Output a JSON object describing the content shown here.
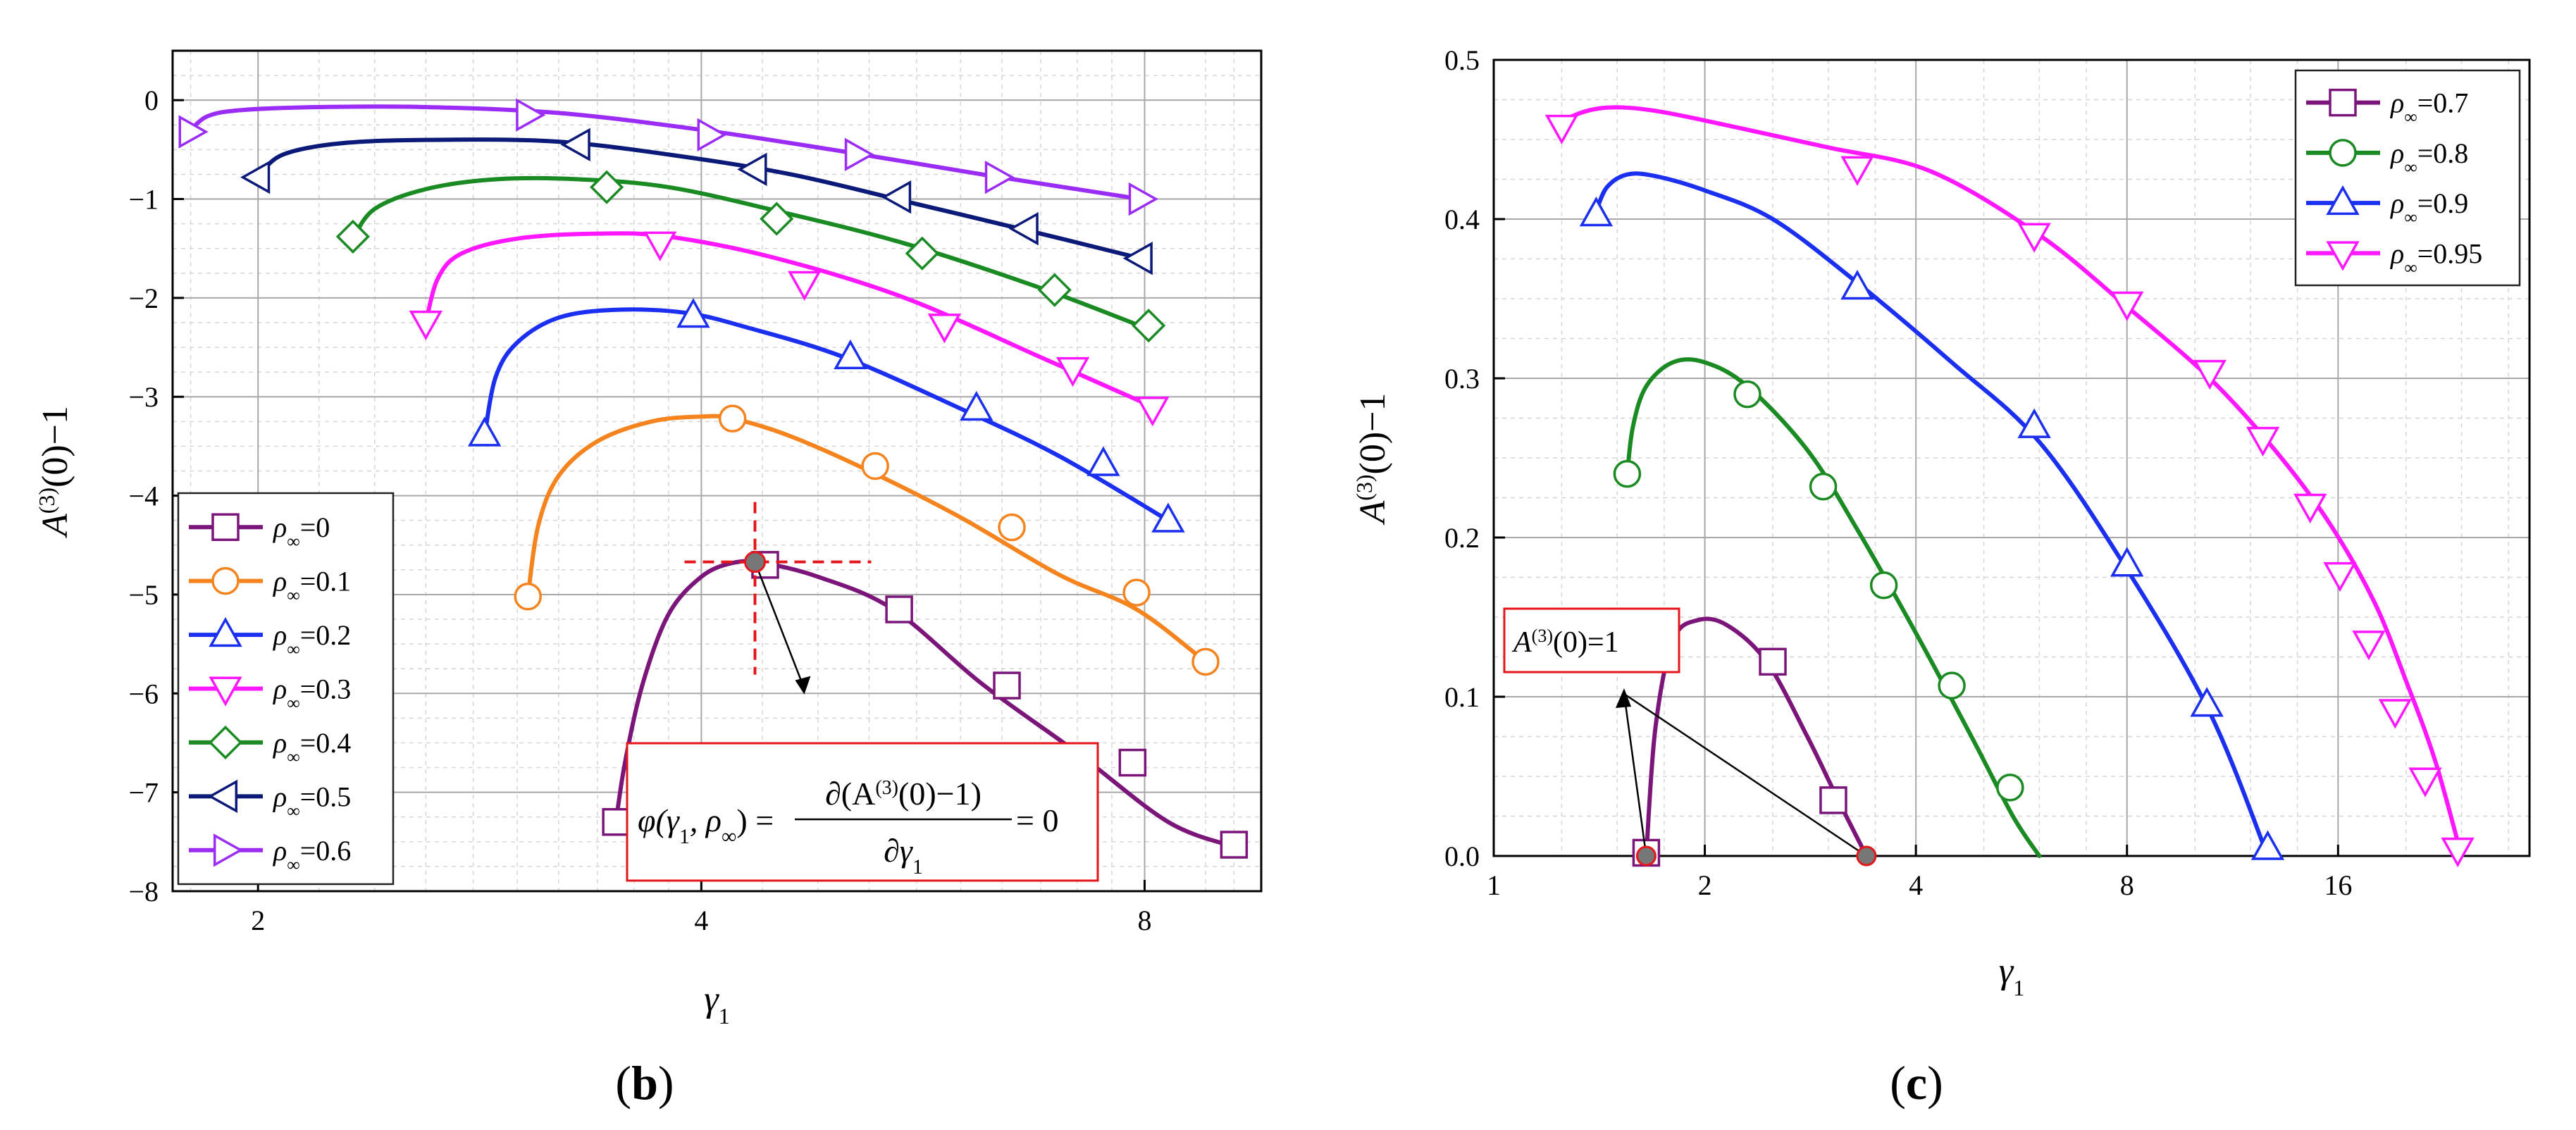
{
  "panels": [
    {
      "id": "b",
      "panel_label": "(b)",
      "panel_letter": "b",
      "formula_parts": [
        "φ(γ",
        "1",
        ", ρ",
        "∞",
        ") = ",
        "∂(A",
        "(3)",
        "(0)−1)",
        "∂γ",
        "1",
        " = 0"
      ]
    },
    {
      "id": "c",
      "panel_label": "(c)",
      "panel_letter": "c",
      "annotation_parts": [
        "A",
        "(3)",
        "(0)=1"
      ]
    }
  ],
  "chart_data": [
    {
      "type": "line",
      "panel": "b",
      "title": "",
      "xlabel": "γ1",
      "ylabel": "A(3)(0)−1",
      "xscale": "log2",
      "xlim": [
        1.75,
        9.6
      ],
      "ylim": [
        -8,
        0.5
      ],
      "xticks": [
        2,
        4,
        8
      ],
      "yticks": [
        0,
        -1,
        -2,
        -3,
        -4,
        -5,
        -6,
        -7,
        -8
      ],
      "xtick_labels": [
        "2",
        "4",
        "8"
      ],
      "ytick_labels": [
        "0",
        "−1",
        "−2",
        "−3",
        "−4",
        "−5",
        "−6",
        "−7",
        "−8"
      ],
      "grid": true,
      "legend_position": "bottom-left",
      "series": [
        {
          "name": "ρ∞=0",
          "legend_text": "ρ",
          "legend_sub": "∞",
          "legend_value": "=0",
          "color": "#7b157a",
          "marker": "square",
          "x": [
            3.5,
            3.55,
            3.65,
            3.8,
            4.0,
            4.2,
            4.4,
            4.8,
            5.4,
            6.2,
            7.2,
            8.3,
            9.2
          ],
          "y": [
            -7.3,
            -6.7,
            -5.9,
            -5.2,
            -4.82,
            -4.68,
            -4.68,
            -4.82,
            -5.15,
            -5.9,
            -6.6,
            -7.3,
            -7.55
          ],
          "markers_x": [
            3.5,
            4.42,
            5.45,
            6.45,
            7.85,
            9.2
          ],
          "markers_y": [
            -7.3,
            -4.7,
            -5.15,
            -5.92,
            -6.7,
            -7.53
          ]
        },
        {
          "name": "ρ∞=0.1",
          "legend_text": "ρ",
          "legend_sub": "∞",
          "legend_value": "=0.1",
          "color": "#f5841f",
          "marker": "circle",
          "x": [
            3.05,
            3.1,
            3.2,
            3.4,
            3.7,
            4.0,
            4.2,
            4.6,
            5.2,
            6.0,
            7.0,
            7.9,
            8.8
          ],
          "y": [
            -5.02,
            -4.3,
            -3.8,
            -3.45,
            -3.25,
            -3.2,
            -3.22,
            -3.4,
            -3.75,
            -4.22,
            -4.8,
            -5.15,
            -5.68
          ],
          "markers_x": [
            3.05,
            4.2,
            5.25,
            6.5,
            7.9,
            8.8
          ],
          "markers_y": [
            -5.02,
            -3.22,
            -3.7,
            -4.32,
            -4.98,
            -5.68
          ]
        },
        {
          "name": "ρ∞=0.2",
          "legend_text": "ρ",
          "legend_sub": "∞",
          "legend_value": "=0.2",
          "color": "#1a2ff0",
          "marker": "triangle-up",
          "x": [
            2.85,
            2.9,
            3.0,
            3.2,
            3.5,
            3.9,
            4.3,
            5.0,
            6.0,
            7.0,
            8.3
          ],
          "y": [
            -3.4,
            -2.8,
            -2.45,
            -2.2,
            -2.12,
            -2.15,
            -2.3,
            -2.6,
            -3.12,
            -3.6,
            -4.25
          ],
          "markers_x": [
            2.85,
            3.95,
            5.05,
            6.15,
            7.5,
            8.3
          ],
          "markers_y": [
            -3.38,
            -2.18,
            -2.6,
            -3.12,
            -3.68,
            -4.25
          ]
        },
        {
          "name": "ρ∞=0.3",
          "legend_text": "ρ",
          "legend_sub": "∞",
          "legend_value": "=0.3",
          "color": "#ff17ff",
          "marker": "triangle-down",
          "x": [
            2.6,
            2.65,
            2.75,
            3.0,
            3.4,
            3.8,
            4.5,
            5.5,
            6.8,
            8.1
          ],
          "y": [
            -2.25,
            -1.8,
            -1.55,
            -1.4,
            -1.35,
            -1.38,
            -1.6,
            -2.0,
            -2.6,
            -3.1
          ],
          "markers_x": [
            2.6,
            3.75,
            4.7,
            5.85,
            7.15,
            8.1
          ],
          "markers_y": [
            -2.25,
            -1.45,
            -1.85,
            -2.28,
            -2.72,
            -3.12
          ]
        },
        {
          "name": "ρ∞=0.4",
          "legend_text": "ρ",
          "legend_sub": "∞",
          "legend_value": "=0.4",
          "color": "#1a8a22",
          "marker": "diamond",
          "x": [
            2.32,
            2.4,
            2.6,
            2.9,
            3.3,
            3.8,
            4.5,
            5.5,
            6.8,
            8.0
          ],
          "y": [
            -1.4,
            -1.1,
            -0.9,
            -0.8,
            -0.8,
            -0.88,
            -1.12,
            -1.45,
            -1.9,
            -2.3
          ],
          "markers_x": [
            2.32,
            3.45,
            4.5,
            5.65,
            6.95,
            8.05
          ],
          "markers_y": [
            -1.38,
            -0.88,
            -1.2,
            -1.55,
            -1.92,
            -2.28
          ]
        },
        {
          "name": "ρ∞=0.5",
          "legend_text": "ρ",
          "legend_sub": "∞",
          "legend_value": "=0.5",
          "color": "#0b1a78",
          "marker": "triangle-left",
          "x": [
            2.0,
            2.08,
            2.3,
            2.7,
            3.2,
            3.8,
            4.6,
            5.6,
            6.8,
            7.95
          ],
          "y": [
            -0.78,
            -0.55,
            -0.43,
            -0.4,
            -0.42,
            -0.55,
            -0.75,
            -1.05,
            -1.35,
            -1.6
          ],
          "markers_x": [
            2.0,
            3.3,
            4.35,
            5.45,
            6.65,
            7.95
          ],
          "markers_y": [
            -0.78,
            -0.45,
            -0.7,
            -0.98,
            -1.3,
            -1.6
          ]
        },
        {
          "name": "ρ∞=0.6",
          "legend_text": "ρ",
          "legend_sub": "∞",
          "legend_value": "=0.6",
          "color": "#9b2cf5",
          "marker": "triangle-right",
          "x": [
            1.8,
            1.85,
            1.95,
            2.2,
            2.6,
            3.2,
            4.0,
            5.0,
            6.2,
            7.95
          ],
          "y": [
            -0.3,
            -0.16,
            -0.1,
            -0.07,
            -0.07,
            -0.13,
            -0.3,
            -0.52,
            -0.75,
            -1.0
          ],
          "markers_x": [
            1.8,
            3.05,
            4.05,
            5.1,
            6.35,
            7.95
          ],
          "markers_y": [
            -0.32,
            -0.15,
            -0.35,
            -0.55,
            -0.78,
            -1.0
          ]
        }
      ],
      "annotations": [
        {
          "type": "crosshair",
          "x": 4.35,
          "y": -4.67,
          "color": "#e5161b"
        }
      ]
    },
    {
      "type": "line",
      "panel": "c",
      "title": "",
      "xlabel": "γ1",
      "ylabel": "A(3)(0)−1",
      "xscale": "log2",
      "xlim": [
        1,
        30
      ],
      "ylim": [
        0,
        0.5
      ],
      "xticks": [
        1,
        2,
        4,
        8,
        16
      ],
      "yticks": [
        0.0,
        0.1,
        0.2,
        0.3,
        0.4,
        0.5
      ],
      "xtick_labels": [
        "1",
        "2",
        "4",
        "8",
        "16"
      ],
      "ytick_labels": [
        "0.0",
        "0.1",
        "0.2",
        "0.3",
        "0.4",
        "0.5"
      ],
      "grid": true,
      "legend_position": "top-right",
      "series": [
        {
          "name": "ρ∞=0.7",
          "legend_text": "ρ",
          "legend_sub": "∞",
          "legend_value": "=0.7",
          "color": "#7b157a",
          "marker": "square",
          "x": [
            1.65,
            1.7,
            1.8,
            1.95,
            2.15,
            2.45,
            2.8,
            3.1,
            3.4
          ],
          "y": [
            0.0,
            0.08,
            0.135,
            0.148,
            0.145,
            0.122,
            0.075,
            0.035,
            0.0
          ],
          "markers_x": [
            1.65,
            2.5,
            3.05
          ],
          "markers_y": [
            0.002,
            0.122,
            0.035
          ]
        },
        {
          "name": "ρ∞=0.8",
          "legend_text": "ρ",
          "legend_sub": "∞",
          "legend_value": "=0.8",
          "color": "#1a8a22",
          "marker": "circle",
          "x": [
            1.55,
            1.58,
            1.65,
            1.8,
            2.0,
            2.3,
            2.8,
            3.3,
            4.0,
            4.8,
            5.5,
            6.0
          ],
          "y": [
            0.24,
            0.27,
            0.295,
            0.31,
            0.31,
            0.295,
            0.255,
            0.205,
            0.14,
            0.075,
            0.025,
            0.0
          ],
          "markers_x": [
            1.55,
            2.3,
            2.95,
            3.6,
            4.5,
            5.45
          ],
          "markers_y": [
            0.24,
            0.29,
            0.232,
            0.17,
            0.107,
            0.043
          ]
        },
        {
          "name": "ρ∞=0.9",
          "legend_text": "ρ",
          "legend_sub": "∞",
          "legend_value": "=0.9",
          "color": "#1a2ff0",
          "marker": "triangle-up",
          "x": [
            1.4,
            1.45,
            1.55,
            1.7,
            2.0,
            2.5,
            3.3,
            4.5,
            6.0,
            8.0,
            10.5,
            12.7
          ],
          "y": [
            0.405,
            0.42,
            0.428,
            0.427,
            0.418,
            0.4,
            0.36,
            0.31,
            0.26,
            0.18,
            0.09,
            0.0
          ],
          "markers_x": [
            1.4,
            3.3,
            5.9,
            8.0,
            10.4,
            12.7
          ],
          "markers_y": [
            0.403,
            0.357,
            0.27,
            0.183,
            0.095,
            0.005
          ]
        },
        {
          "name": "ρ∞=0.95",
          "legend_text": "ρ",
          "legend_sub": "∞",
          "legend_value": "=0.95",
          "color": "#ff17ff",
          "marker": "triangle-down",
          "x": [
            1.25,
            1.3,
            1.45,
            1.7,
            2.2,
            3.0,
            4.2,
            6.0,
            8.0,
            10.5,
            13.0,
            15.5,
            18.0,
            20.0,
            22.0,
            24.0
          ],
          "y": [
            0.458,
            0.465,
            0.47,
            0.468,
            0.458,
            0.445,
            0.43,
            0.39,
            0.345,
            0.3,
            0.255,
            0.21,
            0.16,
            0.11,
            0.06,
            0.0
          ],
          "markers_x": [
            1.25,
            3.3,
            5.9,
            8.0,
            10.5,
            12.5,
            14.6,
            16.1,
            17.7,
            19.3,
            21.3,
            23.7
          ],
          "markers_y": [
            0.458,
            0.432,
            0.39,
            0.347,
            0.304,
            0.262,
            0.22,
            0.177,
            0.134,
            0.091,
            0.048,
            0.004
          ]
        }
      ],
      "annotations": [
        {
          "type": "root-points",
          "x": [
            1.65,
            3.4
          ],
          "y": [
            0.0,
            0.0
          ],
          "color": "#e5161b"
        }
      ]
    }
  ]
}
